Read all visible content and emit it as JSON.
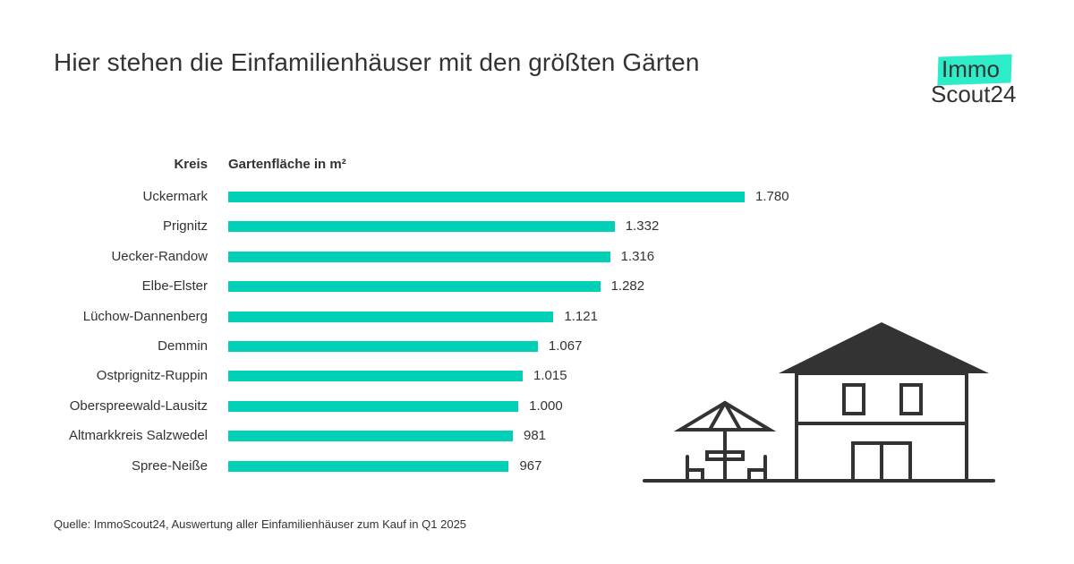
{
  "title": "Hier stehen die Einfamilienhäuser mit den größten Gärten",
  "logo": {
    "line1": "Immo",
    "line2": "Scout24",
    "accent": "#2DEDC9"
  },
  "source": "Quelle: ImmoScout24, Auswertung aller Einfamilienhäuser zum Kauf in Q1 2025",
  "chart_data": {
    "type": "bar",
    "orientation": "horizontal",
    "title": "Hier stehen die Einfamilienhäuser mit den größten Gärten",
    "category_header": "Kreis",
    "value_header": "Gartenfläche in m²",
    "bar_color": "#00D0B5",
    "categories": [
      "Uckermark",
      "Prignitz",
      "Uecker-Randow",
      "Elbe-Elster",
      "Lüchow-Dannenberg",
      "Demmin",
      "Ostprignitz-Ruppin",
      "Oberspreewald-Lausitz",
      "Altmarkkreis Salzwedel",
      "Spree-Neiße"
    ],
    "values": [
      1780,
      1332,
      1316,
      1282,
      1121,
      1067,
      1015,
      1000,
      981,
      967
    ],
    "value_labels": [
      "1.780",
      "1.332",
      "1.316",
      "1.282",
      "1.121",
      "1.067",
      "1.015",
      "1.000",
      "981",
      "967"
    ],
    "xlim": [
      0,
      1780
    ]
  }
}
